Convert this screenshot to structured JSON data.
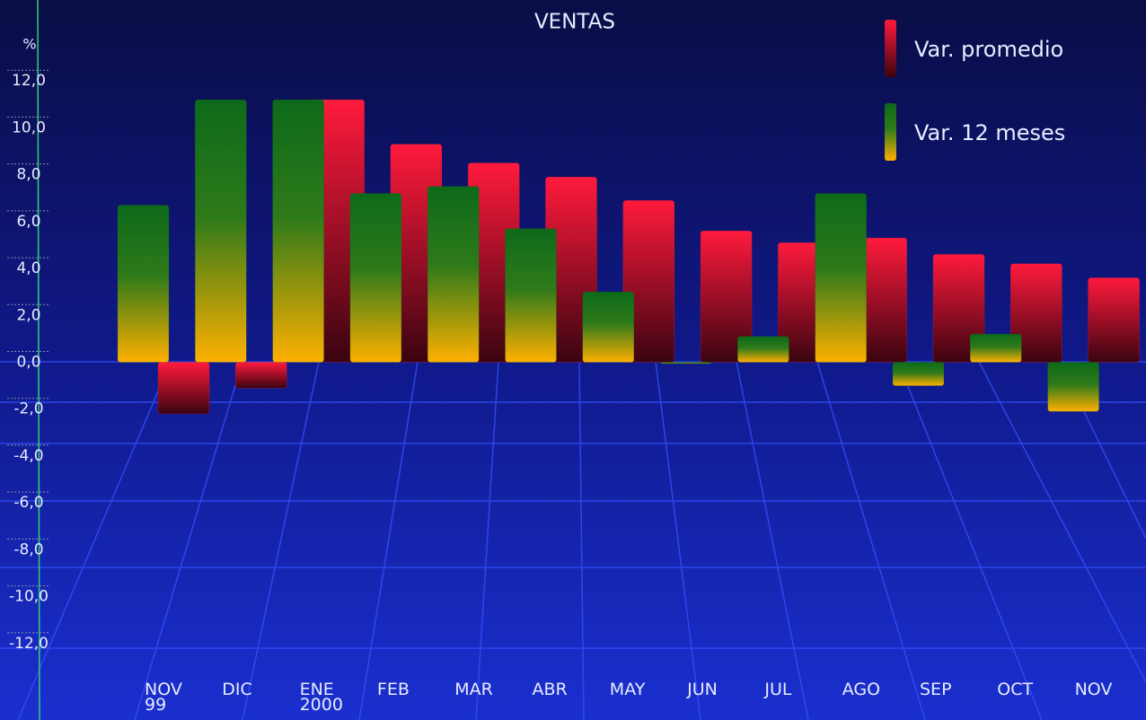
{
  "chart_data": {
    "type": "bar",
    "title": "VENTAS",
    "y_label": "%",
    "categories": [
      "NOV 99",
      "DIC",
      "ENE 2000",
      "FEB",
      "MAR",
      "ABR",
      "MAY",
      "JUN",
      "JUL",
      "AGO",
      "SEP",
      "OCT",
      "NOV"
    ],
    "series": [
      {
        "name": "Var. promedio",
        "color": "#ff1a3c",
        "values": [
          -2.2,
          -1.1,
          11.2,
          9.3,
          8.5,
          7.9,
          6.9,
          5.6,
          5.1,
          5.3,
          4.6,
          4.2,
          3.6
        ]
      },
      {
        "name": "Var. 12 meses",
        "color": "#0d6a1a",
        "values": [
          6.7,
          11.2,
          11.2,
          7.2,
          7.5,
          5.7,
          3.0,
          0.0,
          1.1,
          7.2,
          -1.0,
          1.2,
          -2.1
        ]
      }
    ],
    "ylim": [
      -14,
      14
    ],
    "yticks": [
      {
        "value": 12,
        "label": "12,0"
      },
      {
        "value": 10,
        "label": "10,0"
      },
      {
        "value": 8,
        "label": "8,0"
      },
      {
        "value": 6,
        "label": "6,0"
      },
      {
        "value": 4,
        "label": "4,0"
      },
      {
        "value": 2,
        "label": "2,0"
      },
      {
        "value": 0,
        "label": "0,0"
      },
      {
        "value": -2,
        "label": "-2,0"
      },
      {
        "value": -4,
        "label": "-4,0"
      },
      {
        "value": -6,
        "label": "-6,0"
      },
      {
        "value": -8,
        "label": "-8,0"
      },
      {
        "value": -10,
        "label": "-10,0"
      },
      {
        "value": -12,
        "label": "-12,0"
      }
    ],
    "legend": "top-right"
  }
}
